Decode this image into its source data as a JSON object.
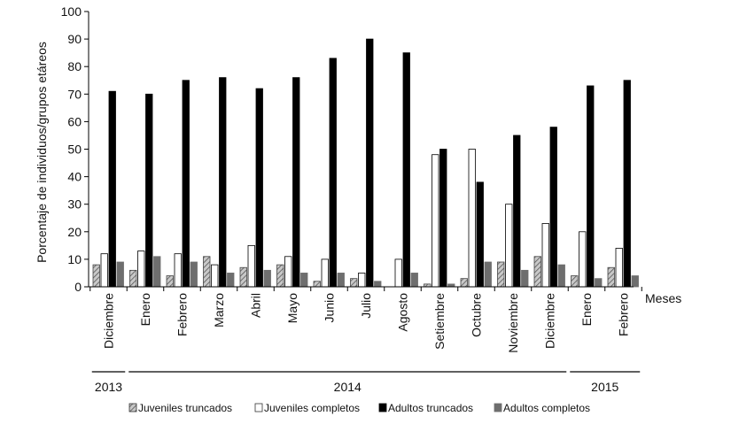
{
  "chart_data": {
    "type": "bar",
    "ylabel": "Porcentaje de individuos/grupos etáreos",
    "xlabel": "Meses",
    "ylim": [
      0,
      100
    ],
    "yticks": [
      0,
      10,
      20,
      30,
      40,
      50,
      60,
      70,
      80,
      90,
      100
    ],
    "categories": [
      "Diciembre",
      "Enero",
      "Febrero",
      "Marzo",
      "Abril",
      "Mayo",
      "Junio",
      "Julio",
      "Agosto",
      "Setiembre",
      "Octubre",
      "Noviembre",
      "Diciembre",
      "Enero",
      "Febrero"
    ],
    "years": [
      {
        "label": "2013",
        "from": 0,
        "to": 0
      },
      {
        "label": "2014",
        "from": 1,
        "to": 12
      },
      {
        "label": "2015",
        "from": 13,
        "to": 14
      }
    ],
    "series": [
      {
        "name": "Juveniles truncados",
        "fill": "#9a9a9a",
        "style": "hatched",
        "values": [
          8,
          6,
          4,
          11,
          7,
          8,
          2,
          3,
          0,
          1,
          3,
          9,
          11,
          4,
          7
        ]
      },
      {
        "name": "Juveniles completos",
        "fill": "#ffffff",
        "style": "outline",
        "values": [
          12,
          13,
          12,
          8,
          15,
          11,
          10,
          5,
          10,
          48,
          50,
          30,
          23,
          20,
          14
        ]
      },
      {
        "name": "Adultos truncados",
        "fill": "#000000",
        "style": "solid",
        "values": [
          71,
          70,
          75,
          76,
          72,
          76,
          83,
          90,
          85,
          50,
          38,
          55,
          58,
          73,
          75
        ]
      },
      {
        "name": "Adultos completos",
        "fill": "#6e6e6e",
        "style": "solid",
        "values": [
          9,
          11,
          9,
          5,
          6,
          5,
          5,
          2,
          5,
          1,
          9,
          6,
          8,
          3,
          4
        ]
      }
    ],
    "grid": false,
    "legend_position": "bottom"
  }
}
